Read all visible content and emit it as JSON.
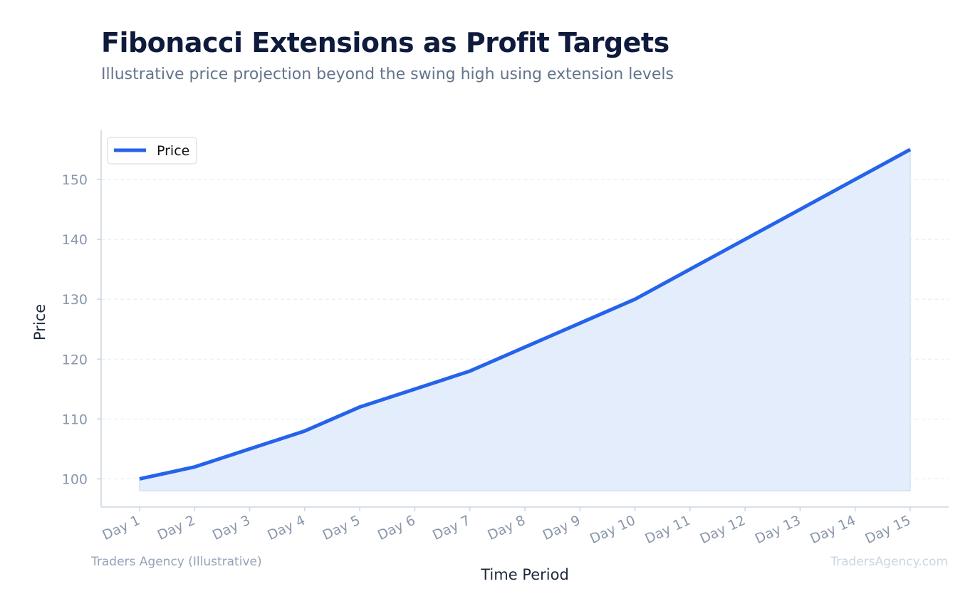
{
  "title": "Fibonacci Extensions as Profit Targets",
  "subtitle": "Illustrative price projection beyond the swing high using extension levels",
  "footer": {
    "left": "Traders Agency (Illustrative)",
    "right": "TradersAgency.com"
  },
  "colors": {
    "line": "#2563eb",
    "fill": "#e4edfb",
    "grid": "#e5e9ef",
    "axis": "#cbd5e1"
  },
  "chart_data": {
    "type": "area",
    "title": "Fibonacci Extensions as Profit Targets",
    "subtitle": "Illustrative price projection beyond the swing high using extension levels",
    "xlabel": "Time Period",
    "ylabel": "Price",
    "categories": [
      "Day 1",
      "Day 2",
      "Day 3",
      "Day 4",
      "Day 5",
      "Day 6",
      "Day 7",
      "Day 8",
      "Day 9",
      "Day 10",
      "Day 11",
      "Day 12",
      "Day 13",
      "Day 14",
      "Day 15"
    ],
    "series": [
      {
        "name": "Price",
        "values": [
          100,
          102,
          105,
          108,
          112,
          115,
          118,
          122,
          126,
          130,
          135,
          140,
          145,
          150,
          155
        ]
      }
    ],
    "fill_base": 98,
    "ylim": [
      95.3,
      158.2
    ],
    "yticks": [
      100,
      110,
      120,
      130,
      140,
      150
    ],
    "grid": true,
    "legend": "top-left"
  }
}
